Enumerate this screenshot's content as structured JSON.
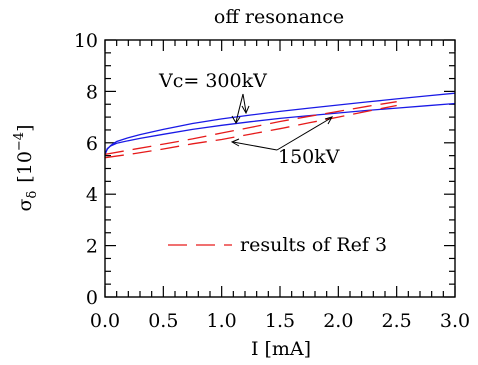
{
  "chart_data": {
    "type": "line",
    "title": "off resonance",
    "xlabel": "I [mA]",
    "ylabel": {
      "symbol": "σ",
      "subscript": "δ",
      "unit_open": "[10",
      "unit_exp": "−4",
      "unit_close": "]"
    },
    "xlim": [
      0,
      3
    ],
    "ylim": [
      0,
      10
    ],
    "x_ticks": [
      "0.0",
      "0.5",
      "1.0",
      "1.5",
      "2.0",
      "2.5",
      "3.0"
    ],
    "y_ticks": [
      "0",
      "2",
      "4",
      "6",
      "8",
      "10"
    ],
    "x_minor_step": 0.1,
    "y_minor_step": 0.5,
    "colors": {
      "simulation": "#1a1ae6",
      "reference": "#e61a1a"
    },
    "series": [
      {
        "group": "simulation",
        "label": "300kV",
        "style": "solid",
        "x": [
          0,
          0.02,
          0.05,
          0.1,
          0.2,
          0.3,
          0.5,
          0.75,
          1.0,
          1.25,
          1.5,
          1.75,
          2.0,
          2.25,
          2.5,
          2.75,
          3.0
        ],
        "y": [
          5.55,
          5.75,
          5.9,
          6.05,
          6.2,
          6.32,
          6.52,
          6.75,
          6.93,
          7.08,
          7.22,
          7.35,
          7.47,
          7.59,
          7.71,
          7.82,
          7.93
        ]
      },
      {
        "group": "simulation",
        "label": "150kV",
        "style": "solid",
        "x": [
          0,
          0.02,
          0.05,
          0.1,
          0.2,
          0.3,
          0.5,
          0.75,
          1.0,
          1.25,
          1.5,
          1.75,
          2.0,
          2.25,
          2.5,
          2.75,
          3.0
        ],
        "y": [
          5.55,
          5.78,
          5.88,
          5.98,
          6.08,
          6.17,
          6.33,
          6.52,
          6.68,
          6.82,
          6.95,
          7.06,
          7.16,
          7.26,
          7.35,
          7.44,
          7.53
        ]
      },
      {
        "group": "reference",
        "label": "300kV",
        "style": "dashed",
        "x": [
          0,
          0.25,
          0.5,
          0.75,
          1.0,
          1.25,
          1.5,
          1.75,
          2.0,
          2.25,
          2.5
        ],
        "y": [
          5.55,
          5.75,
          5.95,
          6.15,
          6.38,
          6.6,
          6.83,
          7.03,
          7.22,
          7.42,
          7.6
        ]
      },
      {
        "group": "reference",
        "label": "150kV",
        "style": "dashed",
        "x": [
          0,
          0.25,
          0.5,
          0.75,
          1.0,
          1.25,
          1.5,
          1.75,
          2.0,
          2.25,
          2.5
        ],
        "y": [
          5.42,
          5.58,
          5.76,
          5.96,
          6.13,
          6.34,
          6.55,
          6.78,
          7.0,
          7.23,
          7.45
        ]
      }
    ],
    "annotations": {
      "vc_label": "Vc= 300kV",
      "low_label": "150kV"
    },
    "legend": {
      "position": "bottom-right",
      "entries": [
        {
          "label": "results of Ref 3",
          "style": "dashed",
          "color": "#e61a1a"
        }
      ]
    }
  }
}
